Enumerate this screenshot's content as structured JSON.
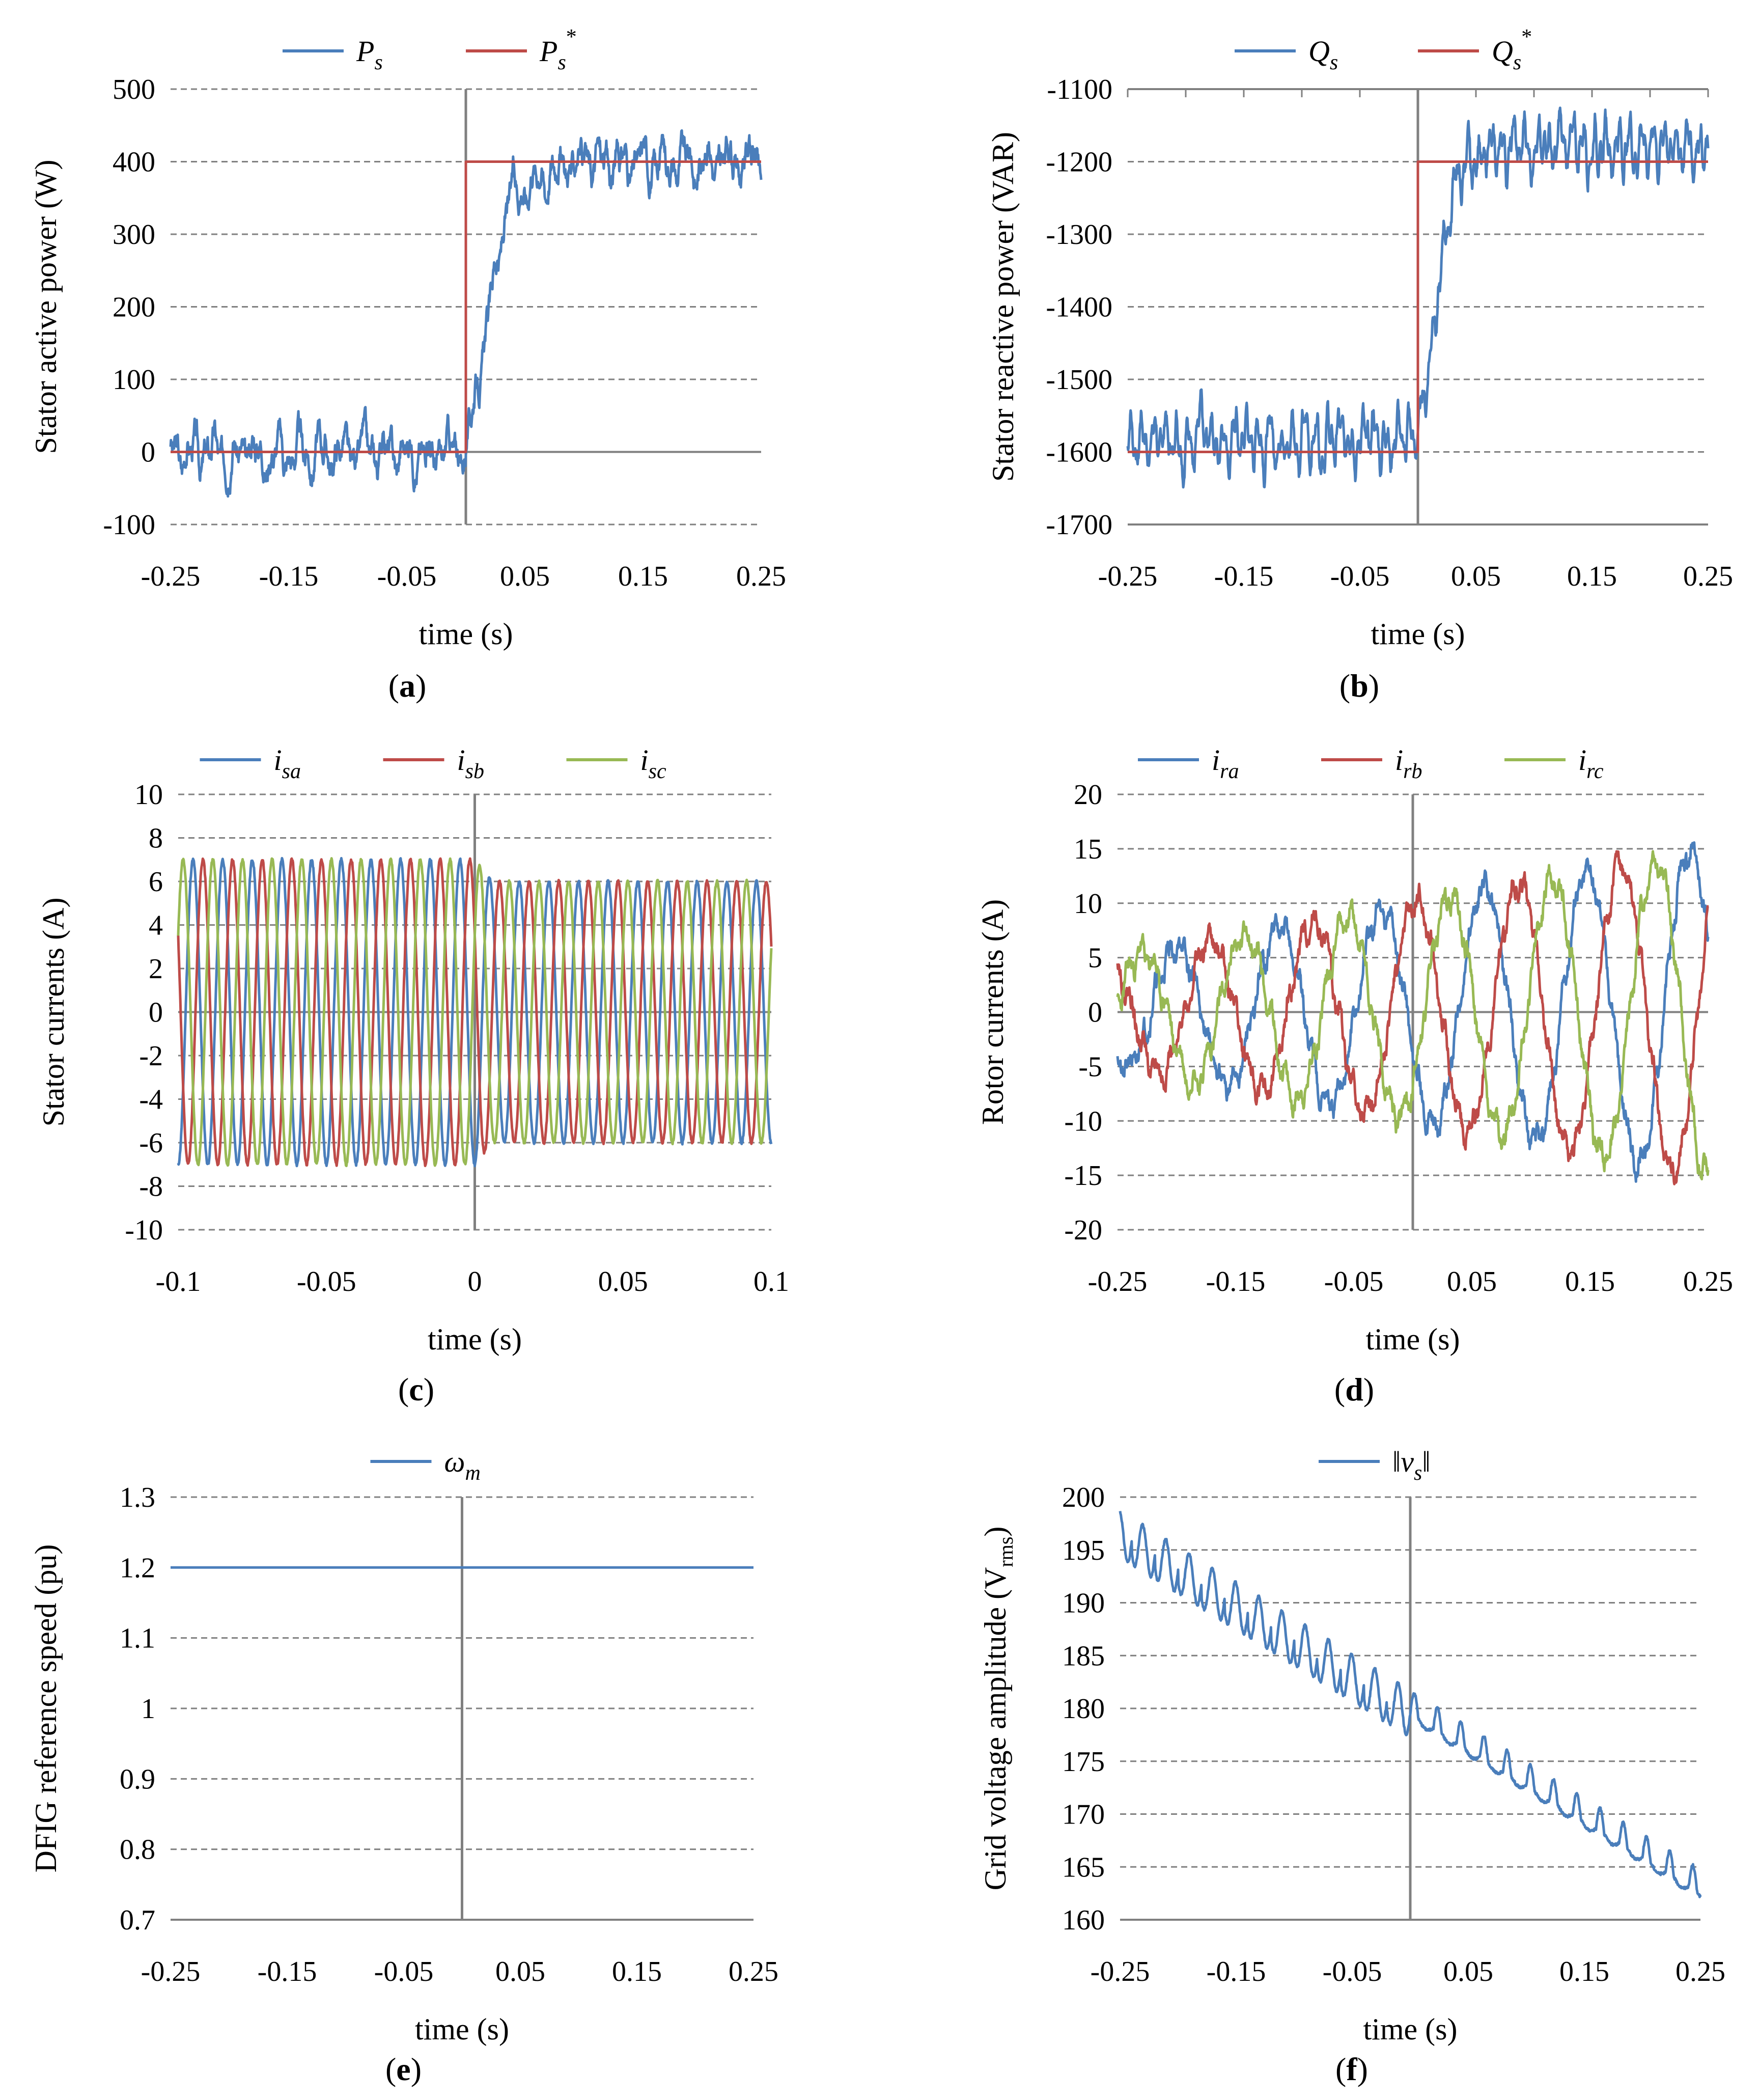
{
  "colors": {
    "blue": "#4a7ebb",
    "red": "#be4b48",
    "green": "#98b954",
    "grid": "#808080",
    "axis": "#808080"
  },
  "chart_data": [
    {
      "id": "a",
      "type": "line",
      "caption": "a",
      "ylabel": "Stator active power (W)",
      "xlabel": "time (s)",
      "xlim": [
        -0.25,
        0.25
      ],
      "ylim": [
        -100,
        500
      ],
      "xticks": [
        -0.25,
        -0.15,
        -0.05,
        0.05,
        0.15,
        0.25
      ],
      "xtick_labels": [
        "-0.25",
        "-0.15",
        "-0.05",
        "0.05",
        "0.15",
        "0.25"
      ],
      "yticks": [
        -100,
        0,
        100,
        200,
        300,
        400,
        500
      ],
      "ytick_labels": [
        "-100",
        "0",
        "100",
        "200",
        "300",
        "400",
        "500"
      ],
      "legend_position": "top",
      "series": [
        {
          "name": "P",
          "sub": "s",
          "sup": "",
          "color": "blue",
          "kind": "noisy-step",
          "before": 0,
          "after": 400,
          "ripple": 30,
          "freq": 55,
          "noise": 18,
          "seed": 3,
          "rise": 0.035
        },
        {
          "name": "P",
          "sub": "s",
          "sup": "*",
          "color": "red",
          "kind": "step",
          "before": 0,
          "after": 400
        }
      ]
    },
    {
      "id": "b",
      "type": "line",
      "caption": "b",
      "ylabel": "Stator reactive power (VAR)",
      "xlabel": "time (s)",
      "xlim": [
        -0.25,
        0.25
      ],
      "ylim": [
        -1700,
        -1100
      ],
      "xticks": [
        -0.25,
        -0.15,
        -0.05,
        0.05,
        0.15,
        0.25
      ],
      "xtick_labels": [
        "-0.25",
        "-0.15",
        "-0.05",
        "0.05",
        "0.15",
        "0.25"
      ],
      "yticks": [
        -1700,
        -1600,
        -1500,
        -1400,
        -1300,
        -1200,
        -1100
      ],
      "ytick_labels": [
        "-1700",
        "-1600",
        "-1500",
        "-1400",
        "-1300",
        "-1200",
        "-1100"
      ],
      "legend_position": "top",
      "series": [
        {
          "name": "Q",
          "sub": "s",
          "sup": "",
          "color": "blue",
          "kind": "noisy-step",
          "before": -1580,
          "after": -1175,
          "ripple": 45,
          "freq": 100,
          "noise": 15,
          "seed": 7,
          "rise": 0.03
        },
        {
          "name": "Q",
          "sub": "s",
          "sup": "*",
          "color": "red",
          "kind": "step",
          "before": -1600,
          "after": -1200
        }
      ]
    },
    {
      "id": "c",
      "type": "line",
      "caption": "c",
      "ylabel": "Stator currents (A)",
      "xlabel": "time (s)",
      "xlim": [
        -0.1,
        0.1
      ],
      "ylim": [
        -10,
        10
      ],
      "xticks": [
        -0.1,
        -0.05,
        0,
        0.05,
        0.1
      ],
      "xtick_labels": [
        "-0.1",
        "-0.05",
        "0",
        "0.05",
        "0.1"
      ],
      "yticks": [
        -10,
        -8,
        -6,
        -4,
        -2,
        0,
        2,
        4,
        6,
        8,
        10
      ],
      "ytick_labels": [
        "-10",
        "-8",
        "-6",
        "-4",
        "-2",
        "0",
        "2",
        "4",
        "6",
        "8",
        "10"
      ],
      "legend_position": "top",
      "series": [
        {
          "name": "i",
          "sub": "sa",
          "sup": "",
          "color": "blue",
          "kind": "sine",
          "amp_before": 7.0,
          "amp_after": 6.0,
          "freq": 100,
          "phase_deg": -90,
          "noise": 0.15,
          "seed": 11
        },
        {
          "name": "i",
          "sub": "sb",
          "sup": "",
          "color": "red",
          "kind": "sine",
          "amp_before": 7.0,
          "amp_after": 6.0,
          "freq": 100,
          "phase_deg": 150,
          "noise": 0.15,
          "seed": 12
        },
        {
          "name": "i",
          "sub": "sc",
          "sup": "",
          "color": "green",
          "kind": "sine",
          "amp_before": 7.0,
          "amp_after": 6.0,
          "freq": 100,
          "phase_deg": 30,
          "noise": 0.15,
          "seed": 13
        }
      ]
    },
    {
      "id": "d",
      "type": "line",
      "caption": "d",
      "ylabel": "Rotor currents (A)",
      "xlabel": "time (s)",
      "xlim": [
        -0.25,
        0.25
      ],
      "ylim": [
        -20,
        20
      ],
      "xticks": [
        -0.25,
        -0.15,
        -0.05,
        0.05,
        0.15,
        0.25
      ],
      "xtick_labels": [
        "-0.25",
        "-0.15",
        "-0.05",
        "0.05",
        "0.15",
        "0.25"
      ],
      "yticks": [
        -20,
        -15,
        -10,
        -5,
        0,
        5,
        10,
        15,
        20
      ],
      "ytick_labels": [
        "-20",
        "-15",
        "-10",
        "-5",
        "0",
        "5",
        "10",
        "15",
        "20"
      ],
      "legend_position": "top",
      "series": [
        {
          "name": "i",
          "sub": "ra",
          "sup": "",
          "color": "blue",
          "kind": "growing-sine",
          "amp_start": 5,
          "amp_end": 15,
          "freq": 11.5,
          "phase_deg": 200,
          "noise": 1.0,
          "seed": 21
        },
        {
          "name": "i",
          "sub": "rb",
          "sup": "",
          "color": "red",
          "kind": "growing-sine",
          "amp_start": 5,
          "amp_end": 15,
          "freq": 11.5,
          "phase_deg": 80,
          "noise": 1.0,
          "seed": 22
        },
        {
          "name": "i",
          "sub": "rc",
          "sup": "",
          "color": "green",
          "kind": "growing-sine",
          "amp_start": 5,
          "amp_end": 15,
          "freq": 11.5,
          "phase_deg": 320,
          "noise": 1.0,
          "seed": 23
        }
      ]
    },
    {
      "id": "e",
      "type": "line",
      "caption": "e",
      "ylabel": "DFIG reference speed (pu)",
      "xlabel": "time (s)",
      "xlim": [
        -0.25,
        0.25
      ],
      "ylim": [
        0.7,
        1.3
      ],
      "xticks": [
        -0.25,
        -0.15,
        -0.05,
        0.05,
        0.15,
        0.25
      ],
      "xtick_labels": [
        "-0.25",
        "-0.15",
        "-0.05",
        "0.05",
        "0.15",
        "0.25"
      ],
      "yticks": [
        0.7,
        0.8,
        0.9,
        1.0,
        1.1,
        1.2,
        1.3
      ],
      "ytick_labels": [
        "0.7",
        "0.8",
        "0.9",
        "1",
        "1.1",
        "1.2",
        "1.3"
      ],
      "legend_position": "top",
      "series": [
        {
          "name": "ω",
          "sub": "m",
          "sup": "",
          "color": "blue",
          "kind": "constant",
          "value": 1.2
        }
      ]
    },
    {
      "id": "f",
      "type": "line",
      "caption": "f",
      "ylabel": "Grid voltage amplitude (V",
      "ylabel_sub": "rms",
      "ylabel_end": ")",
      "xlabel": "time (s)",
      "xlim": [
        -0.25,
        0.25
      ],
      "ylim": [
        160,
        200
      ],
      "xticks": [
        -0.25,
        -0.15,
        -0.05,
        0.05,
        0.15,
        0.25
      ],
      "xtick_labels": [
        "-0.25",
        "-0.15",
        "-0.05",
        "0.05",
        "0.15",
        "0.25"
      ],
      "yticks": [
        160,
        165,
        170,
        175,
        180,
        185,
        190,
        195,
        200
      ],
      "ytick_labels": [
        "160",
        "165",
        "170",
        "175",
        "180",
        "185",
        "190",
        "195",
        "200"
      ],
      "legend_position": "top",
      "series": [
        {
          "name": "‖v",
          "sub": "s",
          "sup": "",
          "suffix": "‖",
          "color": "blue",
          "kind": "ramp-ripple",
          "start": 196.5,
          "end": 162.5,
          "ripple": 2.2,
          "freq": 50,
          "noise": 0.25,
          "seed": 31
        }
      ]
    }
  ]
}
